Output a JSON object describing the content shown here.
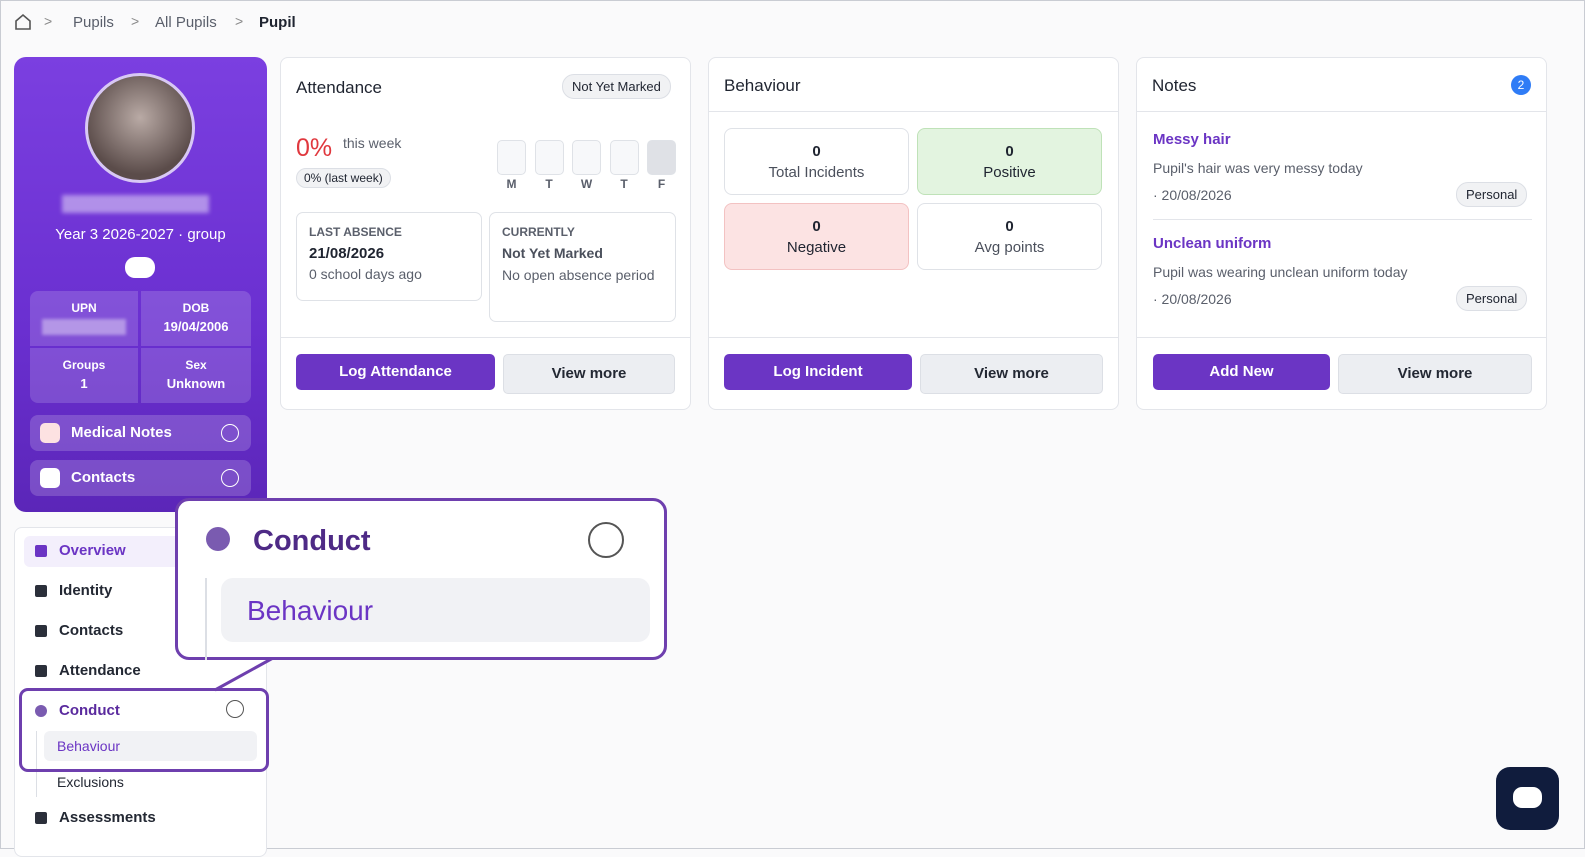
{
  "breadcrumb": [
    "Pupils",
    "All Pupils",
    "Pupil"
  ],
  "profile": {
    "class": "Year 3 2026-2027 · group",
    "fields": [
      {
        "label": "UPN"
      },
      {
        "label": "DOB",
        "value": "19/04/2006"
      },
      {
        "label": "Groups",
        "value": "1"
      },
      {
        "label": "Sex",
        "value": "Unknown"
      }
    ],
    "sections": [
      "Medical Notes",
      "Contacts"
    ]
  },
  "nav": {
    "items": [
      "Overview",
      "Identity",
      "Contacts",
      "Attendance",
      "Conduct",
      "Assessments"
    ],
    "conduct_children": [
      "Behaviour",
      "Exclusions"
    ]
  },
  "attendance": {
    "title": "Attendance",
    "badge": "Not Yet Marked",
    "percent": "0%",
    "percent_caption": "this week",
    "last_week": "0% (last week)",
    "days": [
      "M",
      "T",
      "W",
      "T",
      "F"
    ],
    "last_absence": {
      "label": "LAST ABSENCE",
      "date": "21/08/2026",
      "ago": "0 school days ago"
    },
    "currently": {
      "label": "CURRENTLY",
      "status": "Not Yet Marked",
      "detail": "No open absence period"
    },
    "buttons": [
      "Log Attendance",
      "View more"
    ]
  },
  "behaviour": {
    "title": "Behaviour",
    "stats": [
      {
        "value": 0,
        "label": "Total Incidents"
      },
      {
        "value": 0,
        "label": "Positive"
      },
      {
        "value": 0,
        "label": "Negative"
      },
      {
        "value": 0,
        "label": "Avg points"
      }
    ],
    "buttons": [
      "Log Incident",
      "View more"
    ]
  },
  "notes": {
    "title": "Notes",
    "count": 2,
    "items": [
      {
        "title": "Messy hair",
        "text": "Pupil's hair was very messy today",
        "date": "· 20/08/2026",
        "tag": "Personal"
      },
      {
        "title": "Unclean uniform",
        "text": "Pupil was wearing unclean uniform today",
        "date": "· 20/08/2026",
        "tag": "Personal"
      }
    ],
    "buttons": [
      "Add New",
      "View more"
    ]
  },
  "callout": {
    "section": "Conduct",
    "item": "Behaviour"
  }
}
